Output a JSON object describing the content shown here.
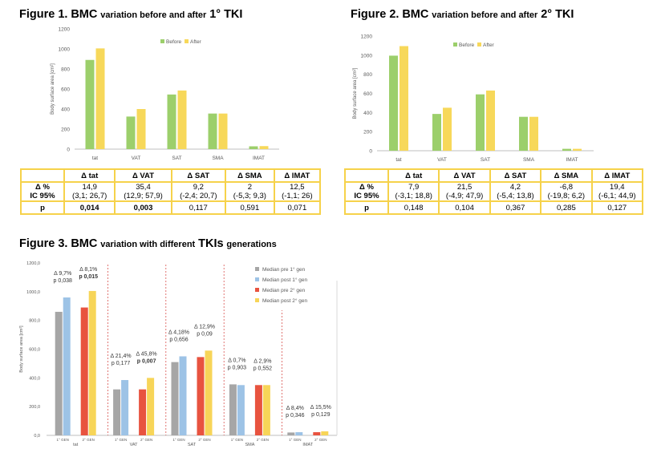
{
  "figure1": {
    "title": {
      "word1": "Figure 1.",
      "word2": "BMC",
      "rest": "variation before and after",
      "tail": "1° TKI"
    },
    "chart_data": {
      "type": "bar",
      "categories": [
        "tat",
        "VAT",
        "SAT",
        "SMA",
        "IMAT"
      ],
      "series": [
        {
          "name": "Before",
          "values": [
            890,
            325,
            545,
            355,
            28
          ]
        },
        {
          "name": "After",
          "values": [
            1005,
            400,
            585,
            355,
            30
          ]
        }
      ],
      "ylabel": "Body surface area [cm²]",
      "ylim": [
        0,
        1200
      ],
      "yticks": [
        "0",
        "200",
        "400",
        "600",
        "800",
        "1000",
        "1200"
      ],
      "legend": "top-right",
      "grid": false
    },
    "table": {
      "headers": [
        "",
        "Δ tat",
        "Δ VAT",
        "Δ SAT",
        "Δ SMA",
        "Δ IMAT"
      ],
      "row_labels": [
        "Δ %",
        "IC 95%",
        "p"
      ],
      "delta": [
        "14,9",
        "35,4",
        "9,2",
        "2",
        "12,5"
      ],
      "ic": [
        "(3,1; 26,7)",
        "(12,9; 57,9)",
        "(-2,4; 20,7)",
        "(-5,3; 9,3)",
        "(-1,1; 26)"
      ],
      "p": [
        "0,014",
        "0,003",
        "0,117",
        "0,591",
        "0,071"
      ]
    }
  },
  "figure2": {
    "title": {
      "word1": "Figure 2.",
      "word2": "BMC",
      "rest": "variation before and after",
      "tail": "2° TKI"
    },
    "chart_data": {
      "type": "bar",
      "categories": [
        "tat",
        "VAT",
        "SAT",
        "SMA",
        "IMAT"
      ],
      "series": [
        {
          "name": "Before",
          "values": [
            995,
            385,
            590,
            355,
            20
          ]
        },
        {
          "name": "After",
          "values": [
            1095,
            450,
            630,
            355,
            20
          ]
        }
      ],
      "ylabel": "Body surface area [cm²]",
      "ylim": [
        0,
        1200
      ],
      "yticks": [
        "0",
        "200",
        "400",
        "600",
        "800",
        "1000",
        "1200"
      ],
      "legend": "top-right",
      "grid": false
    },
    "table": {
      "headers": [
        "",
        "Δ tat",
        "Δ VAT",
        "Δ SAT",
        "Δ SMA",
        "Δ IMAT"
      ],
      "row_labels": [
        "Δ %",
        "IC 95%",
        "p"
      ],
      "delta": [
        "7,9",
        "21,5",
        "4,2",
        "-6,8",
        "19,4"
      ],
      "ic": [
        "(-3,1; 18,8)",
        "(-4,9; 47,9)",
        "(-5,4; 13,8)",
        "(-19,8; 6,2)",
        "(-6,1; 44,9)"
      ],
      "p": [
        "0,148",
        "0,104",
        "0,367",
        "0,285",
        "0,127"
      ]
    }
  },
  "figure3": {
    "title": {
      "word1": "Figure 3.",
      "word2": "BMC",
      "rest": "variation with different",
      "tkis": "TKIs",
      "tail": "generations"
    },
    "chart_data": {
      "type": "bar",
      "categories": [
        "tat",
        "VAT",
        "SAT",
        "SMA",
        "IMAT"
      ],
      "group_labels": [
        "1° GEN",
        "2° GEN"
      ],
      "series": [
        {
          "name": "Median pre 1° gen",
          "values": [
            860,
            320,
            510,
            355,
            20
          ]
        },
        {
          "name": "Median post 1° gen",
          "values": [
            960,
            385,
            550,
            350,
            22
          ]
        },
        {
          "name": "Median pre 2° gen",
          "values": [
            890,
            320,
            545,
            350,
            22
          ]
        },
        {
          "name": "Median post 2° gen",
          "values": [
            1005,
            400,
            590,
            350,
            28
          ]
        }
      ],
      "ylabel": "Body surface area [cm²]",
      "ylim": [
        0,
        1200
      ],
      "yticks": [
        "0,0",
        "200,0",
        "400,0",
        "600,0",
        "800,0",
        "1000,0",
        "1200,0"
      ],
      "legend": "top-right",
      "grid": false,
      "annotations": [
        {
          "category": "tat",
          "group": "1° GEN",
          "delta": "Δ 9,7%",
          "p": "p 0,038",
          "p_bold": false
        },
        {
          "category": "tat",
          "group": "2° GEN",
          "delta": "Δ 8,1%",
          "p": "p 0,015",
          "p_bold": true
        },
        {
          "category": "VAT",
          "group": "1° GEN",
          "delta": "Δ 21,4%",
          "p": "p 0,177",
          "p_bold": false
        },
        {
          "category": "VAT",
          "group": "2° GEN",
          "delta": "Δ 45,8%",
          "p": "p 0,007",
          "p_bold": true
        },
        {
          "category": "SAT",
          "group": "1° GEN",
          "delta": "Δ 4,18%",
          "p": "p 0,656",
          "p_bold": false
        },
        {
          "category": "SAT",
          "group": "2° GEN",
          "delta": "Δ 12,9%",
          "p": "p 0,09",
          "p_bold": false
        },
        {
          "category": "SMA",
          "group": "1° GEN",
          "delta": "Δ 0,7%",
          "p": "p 0,903",
          "p_bold": false
        },
        {
          "category": "SMA",
          "group": "2° GEN",
          "delta": "Δ 2,9%",
          "p": "p 0,552",
          "p_bold": false
        },
        {
          "category": "IMAT",
          "group": "1° GEN",
          "delta": "Δ 8,4%",
          "p": "p 0,346",
          "p_bold": false
        },
        {
          "category": "IMAT",
          "group": "2° GEN",
          "delta": "Δ 15,5%",
          "p": "p 0,129",
          "p_bold": false
        }
      ]
    }
  },
  "colors": {
    "before": "#9ccf6b",
    "after": "#f7d85a",
    "pre1": "#a6a6a6",
    "post1": "#9dc3e6",
    "pre2": "#e8533f",
    "post2": "#f7d558",
    "table_border": "#f6d24a",
    "separator": "#d9534f",
    "axis": "#bfbfbf",
    "tick_text": "#595959"
  }
}
